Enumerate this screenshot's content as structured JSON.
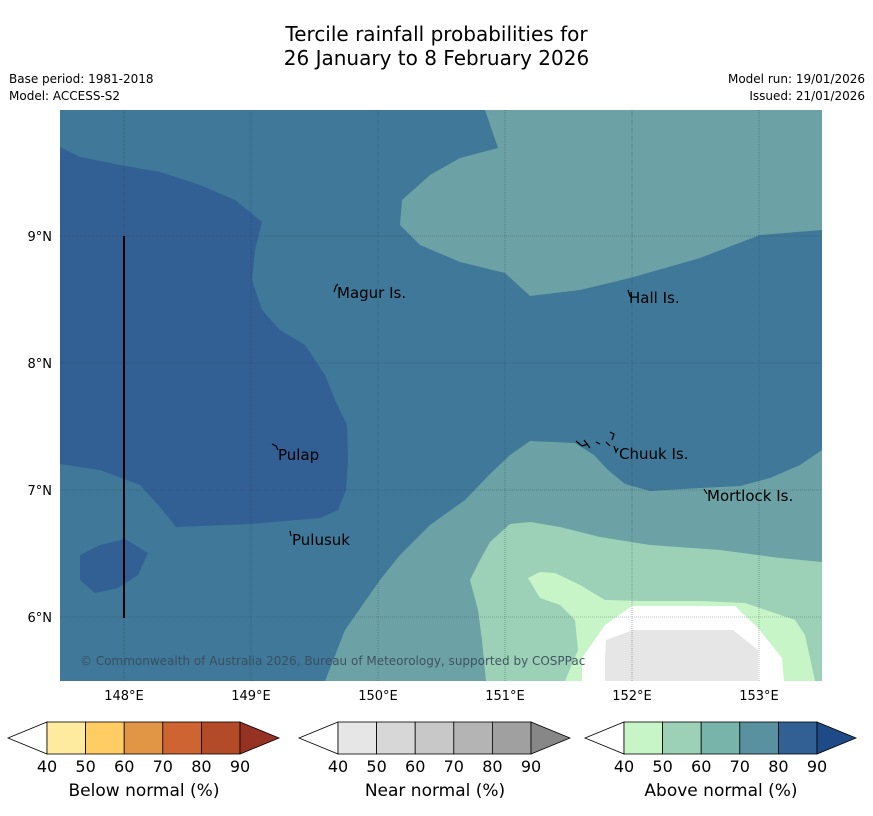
{
  "title_line1": "Tercile rainfall probabilities for",
  "title_line2": "26 January to 8 February 2026",
  "base_period": "Base period: 1981-2018",
  "model": "Model: ACCESS-S2",
  "model_run": "Model run: 19/01/2026",
  "issued": "Issued: 21/01/2026",
  "lat_labels": [
    "9°N",
    "8°N",
    "7°N",
    "6°N"
  ],
  "lon_labels": [
    "148°E",
    "149°E",
    "150°E",
    "151°E",
    "152°E",
    "153°E"
  ],
  "places": [
    "Magur Is.",
    "Hall Is.",
    "Pulap",
    "Chuuk Is.",
    "Mortlock Is.",
    "Pulusuk"
  ],
  "copyright": "© Commonwealth of Australia 2026, Bureau of Meteorology, supported by COSPPac",
  "colors": {
    "above_80": "#325f94",
    "above_70": "#3f7898",
    "above_60": "#6ca2a5",
    "above_50": "#9cd1b7",
    "above_40": "#c8f5c8",
    "near_40": "#e6e6e6",
    "no_data": "#ffffff"
  },
  "colorbars": [
    {
      "title": "Below normal (%)",
      "ticks": [
        "40",
        "50",
        "60",
        "70",
        "80",
        "90"
      ],
      "colors": [
        "#ffffff",
        "#ffeba0",
        "#ffcd64",
        "#e19645",
        "#cd6432",
        "#b44b28",
        "#963223"
      ]
    },
    {
      "title": "Near normal (%)",
      "ticks": [
        "40",
        "50",
        "60",
        "70",
        "80",
        "90"
      ],
      "colors": [
        "#ffffff",
        "#e6e6e6",
        "#d7d7d7",
        "#c8c8c8",
        "#b4b4b4",
        "#a0a0a0",
        "#878787"
      ]
    },
    {
      "title": "Above normal (%)",
      "ticks": [
        "40",
        "50",
        "60",
        "70",
        "80",
        "90"
      ],
      "colors": [
        "#ffffff",
        "#c8f5c8",
        "#9cd1b7",
        "#78b4aa",
        "#5a91a0",
        "#325f94",
        "#1e4b87"
      ]
    }
  ]
}
